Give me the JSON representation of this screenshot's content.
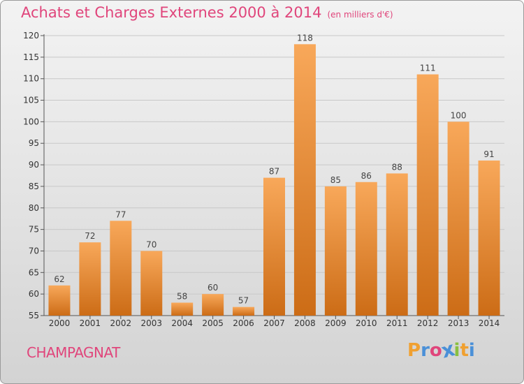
{
  "chart_data": {
    "type": "bar",
    "title": "Achats et Charges Externes 2000 à 2014",
    "subtitle": "(en milliers d'€)",
    "categories": [
      "2000",
      "2001",
      "2002",
      "2003",
      "2004",
      "2005",
      "2006",
      "2007",
      "2008",
      "2009",
      "2010",
      "2011",
      "2012",
      "2013",
      "2014"
    ],
    "values": [
      62,
      72,
      77,
      70,
      58,
      60,
      57,
      87,
      118,
      85,
      86,
      88,
      111,
      100,
      91
    ],
    "ylim": [
      55,
      120
    ],
    "yticks": [
      55,
      60,
      65,
      70,
      75,
      80,
      85,
      90,
      95,
      100,
      105,
      110,
      115,
      120
    ],
    "grid": true,
    "bar_color_top": "#f8a85a",
    "bar_color_bottom": "#cc6c16"
  },
  "commune": "CHAMPAGNAT",
  "logo": {
    "text": "Proxiti",
    "letters": [
      {
        "ch": "P",
        "color": "#f0a030"
      },
      {
        "ch": "r",
        "color": "#4a90d8"
      },
      {
        "ch": "o",
        "color": "#e0457b"
      },
      {
        "ch": "x",
        "color": "#4a90d8"
      },
      {
        "ch": "i",
        "color": "#8ac040"
      },
      {
        "ch": "t",
        "color": "#f0a030"
      },
      {
        "ch": "i",
        "color": "#4a90d8"
      }
    ]
  }
}
